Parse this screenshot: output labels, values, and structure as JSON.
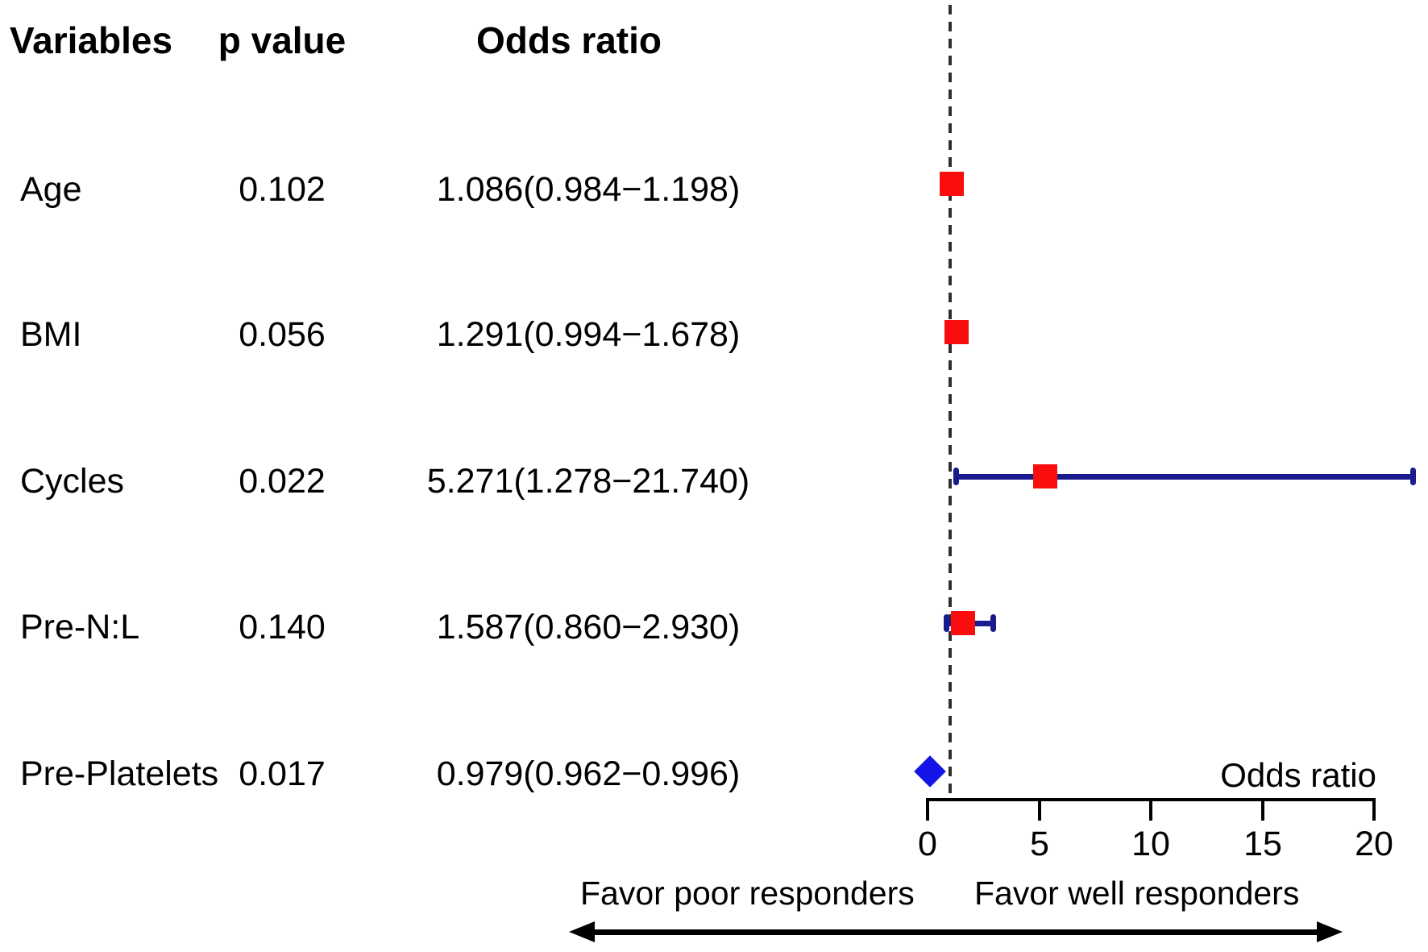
{
  "chart_data": {
    "type": "forest",
    "columns": [
      "Variables",
      "p value",
      "Odds ratio"
    ],
    "rows": [
      {
        "variable": "Age",
        "p_value": "0.102",
        "or_ci_text": "1.086(0.984−1.198)",
        "or": 1.086,
        "ci_low": 0.984,
        "ci_high": 1.198,
        "marker": "square",
        "show_ci": true
      },
      {
        "variable": "BMI",
        "p_value": "0.056",
        "or_ci_text": "1.291(0.994−1.678)",
        "or": 1.291,
        "ci_low": 0.994,
        "ci_high": 1.678,
        "marker": "square",
        "show_ci": true
      },
      {
        "variable": "Cycles",
        "p_value": "0.022",
        "or_ci_text": "5.271(1.278−21.740)",
        "or": 5.271,
        "ci_low": 1.278,
        "ci_high": 21.74,
        "marker": "square",
        "show_ci": true
      },
      {
        "variable": "Pre-N:L",
        "p_value": "0.140",
        "or_ci_text": "1.587(0.860−2.930)",
        "or": 1.587,
        "ci_low": 0.86,
        "ci_high": 2.93,
        "marker": "square",
        "show_ci": true
      },
      {
        "variable": "Pre-Platelets",
        "p_value": "0.017",
        "or_ci_text": "0.979(0.962−0.996)",
        "or": 0.979,
        "ci_low": 0.962,
        "ci_high": 0.996,
        "marker": "diamond",
        "show_ci": false,
        "display_or": 0.1
      }
    ],
    "axis": {
      "label": "Odds ratio",
      "min": 0,
      "max": 20,
      "ticks": [
        0,
        5,
        10,
        15,
        20
      ],
      "reference_line": 1,
      "reference_style": "dashed",
      "grid": false
    },
    "footer": {
      "left": "Favor poor responders",
      "right": "Favor well responders"
    },
    "colors": {
      "square": "#f90d0d",
      "whisker": "#1b1b90",
      "diamond": "#1414e6",
      "reference_line": "#2f2f2f",
      "axis": "#000000",
      "text": "#000000"
    }
  }
}
